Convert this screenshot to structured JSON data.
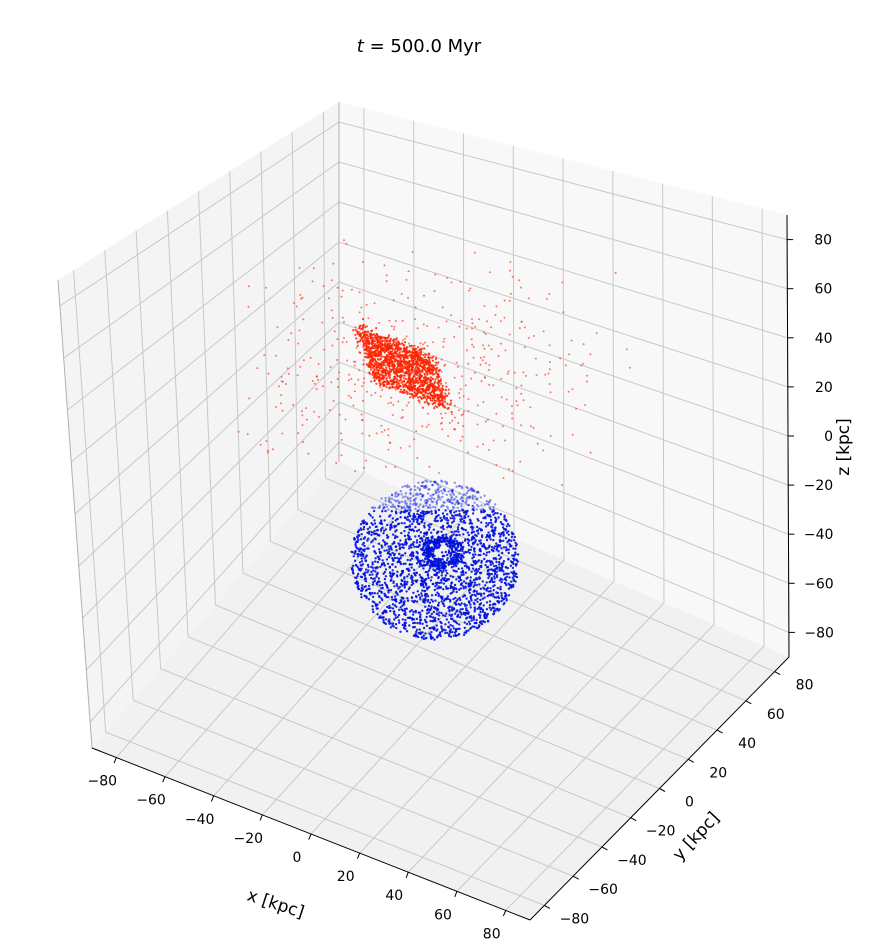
{
  "title": {
    "italic": "t",
    "rest": " = 500.0 Myr"
  },
  "chart_data": {
    "type": "scatter",
    "projection": "3d",
    "title": "t = 500.0 Myr",
    "xlabel": "x [kpc]",
    "ylabel": "y [kpc]",
    "zlabel": "z [kpc]",
    "xlim": [
      -90,
      90
    ],
    "ylim": [
      -90,
      90
    ],
    "zlim": [
      -90,
      90
    ],
    "x_ticks": [
      -80,
      -60,
      -40,
      -20,
      0,
      20,
      40,
      60,
      80
    ],
    "y_ticks": [
      -80,
      -60,
      -40,
      -20,
      0,
      20,
      40,
      60,
      80
    ],
    "z_ticks": [
      -80,
      -60,
      -40,
      -20,
      0,
      20,
      40,
      60,
      80
    ],
    "x_tick_labels": [
      "−80",
      "−60",
      "−40",
      "−20",
      "0",
      "20",
      "40",
      "60",
      "80"
    ],
    "y_tick_labels": [
      "−80",
      "−60",
      "−40",
      "−20",
      "0",
      "20",
      "40",
      "60",
      "80"
    ],
    "z_tick_labels": [
      "−80",
      "−60",
      "−40",
      "−20",
      "0",
      "20",
      "40",
      "60",
      "80"
    ],
    "grid": true,
    "series": [
      {
        "color": "#ff2200",
        "distribution": "satellite galaxy: dense disturbed disk with tidal debris",
        "approx_center": [
          -30,
          -35,
          40
        ]
      },
      {
        "color": "#0011dd",
        "distribution": "host galaxy: disk with spiral structure and central ring",
        "approx_center": [
          0,
          0,
          -35
        ],
        "approx_radius": 28
      }
    ]
  }
}
